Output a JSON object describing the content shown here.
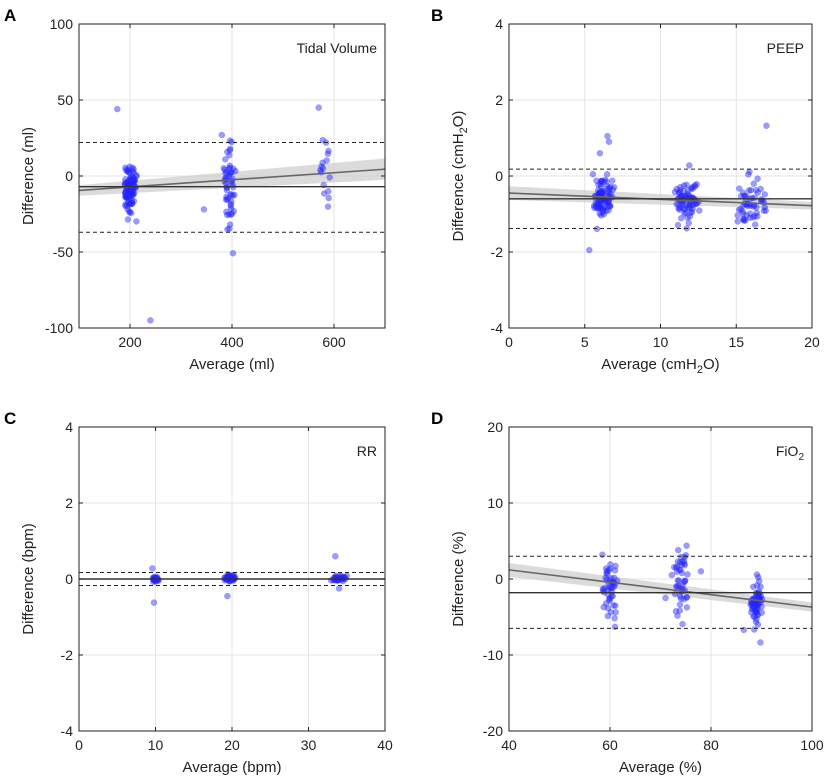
{
  "figure": {
    "colors": {
      "points": "#2424ff",
      "mean_line": "#333333",
      "regression_line": "#666666",
      "ci_band": "#cccccc",
      "loa_line": "#222222"
    }
  },
  "chart_data": [
    {
      "panel": "A",
      "type": "scatter",
      "title": "Tidal Volume",
      "title_main": "Tidal Volume",
      "title_sub": "",
      "xlabel": "Average (ml)",
      "ylabel": "Difference (ml)",
      "xlim": [
        100,
        700
      ],
      "ylim": [
        -100,
        100
      ],
      "xticks": [
        200,
        400,
        600
      ],
      "yticks": [
        -100,
        -50,
        0,
        50,
        100
      ],
      "mean_diff": -7,
      "loa_upper": 22,
      "loa_lower": -37,
      "regression": {
        "x": [
          100,
          700
        ],
        "y": [
          -9.5,
          4.5
        ],
        "ci_half_width": [
          3.5,
          7
        ]
      },
      "clusters": [
        {
          "center": 200,
          "spread": 13,
          "mean": -7,
          "sd": 8,
          "n": 110
        },
        {
          "center": 395,
          "spread": 14,
          "mean": -8,
          "sd": 14,
          "n": 55
        },
        {
          "center": 585,
          "spread": 14,
          "mean": 8,
          "sd": 11,
          "n": 16
        }
      ],
      "extra_points": [
        [
          175,
          44
        ],
        [
          240,
          -95
        ],
        [
          345,
          -22
        ],
        [
          380,
          27
        ],
        [
          570,
          45
        ]
      ]
    },
    {
      "panel": "B",
      "type": "scatter",
      "title": "PEEP",
      "title_main": "PEEP",
      "title_sub": "",
      "xlabel": "Average (cmH2O)",
      "xlabel_pre": "Average (cmH",
      "xlabel_sub": "2",
      "xlabel_post": "O)",
      "ylabel": "Difference (cmH2O)",
      "ylabel_pre": "Difference (cmH",
      "ylabel_sub": "2",
      "ylabel_post": "O)",
      "xlim": [
        0,
        20
      ],
      "ylim": [
        -4,
        4
      ],
      "xticks": [
        0,
        5,
        10,
        15,
        20
      ],
      "yticks": [
        -4,
        -2,
        0,
        2,
        4
      ],
      "mean_diff": -0.6,
      "loa_upper": 0.18,
      "loa_lower": -1.38,
      "regression": {
        "x": [
          0,
          20
        ],
        "y": [
          -0.45,
          -0.78
        ],
        "ci_half_width": [
          0.18,
          0.1
        ]
      },
      "clusters": [
        {
          "center": 6.2,
          "spread": 0.8,
          "mean": -0.55,
          "sd": 0.28,
          "n": 90
        },
        {
          "center": 11.8,
          "spread": 0.9,
          "mean": -0.65,
          "sd": 0.28,
          "n": 70
        },
        {
          "center": 16.0,
          "spread": 1.1,
          "mean": -0.7,
          "sd": 0.3,
          "n": 55
        }
      ],
      "extra_points": [
        [
          5.3,
          -1.95
        ],
        [
          6.0,
          0.6
        ],
        [
          6.5,
          1.05
        ],
        [
          6.6,
          0.9
        ],
        [
          11.9,
          0.28
        ],
        [
          17.0,
          1.32
        ]
      ]
    },
    {
      "panel": "C",
      "type": "scatter",
      "title": "RR",
      "title_main": "RR",
      "title_sub": "",
      "xlabel": "Average (bpm)",
      "ylabel": "Difference (bpm)",
      "xlim": [
        0,
        40
      ],
      "ylim": [
        -4,
        4
      ],
      "xticks": [
        0,
        10,
        20,
        30,
        40
      ],
      "yticks": [
        -4,
        -2,
        0,
        2,
        4
      ],
      "mean_diff": 0.0,
      "loa_upper": 0.17,
      "loa_lower": -0.17,
      "regression": null,
      "clusters": [
        {
          "center": 10.0,
          "spread": 0.5,
          "mean": 0.0,
          "sd": 0.04,
          "n": 30
        },
        {
          "center": 19.7,
          "spread": 0.8,
          "mean": 0.02,
          "sd": 0.04,
          "n": 60
        },
        {
          "center": 34.0,
          "spread": 1.2,
          "mean": 0.0,
          "sd": 0.05,
          "n": 30
        }
      ],
      "extra_points": [
        [
          9.6,
          0.28
        ],
        [
          9.8,
          -0.62
        ],
        [
          19.4,
          -0.45
        ],
        [
          33.5,
          0.6
        ],
        [
          34.0,
          -0.25
        ]
      ]
    },
    {
      "panel": "D",
      "type": "scatter",
      "title": "FiO2",
      "title_main": "FiO",
      "title_sub": "2",
      "xlabel": "Average (%)",
      "ylabel": "Difference (%)",
      "xlim": [
        40,
        100
      ],
      "ylim": [
        -20,
        20
      ],
      "xticks": [
        40,
        60,
        80,
        100
      ],
      "yticks": [
        -20,
        -10,
        0,
        10,
        20
      ],
      "mean_diff": -1.8,
      "loa_upper": 3.0,
      "loa_lower": -6.5,
      "regression": {
        "x": [
          40,
          100
        ],
        "y": [
          1.2,
          -3.7
        ],
        "ci_half_width": [
          0.9,
          0.6
        ]
      },
      "clusters": [
        {
          "center": 60.0,
          "spread": 1.5,
          "mean": -1.5,
          "sd": 2.0,
          "n": 45
        },
        {
          "center": 74.0,
          "spread": 2.0,
          "mean": -1.0,
          "sd": 2.6,
          "n": 45
        },
        {
          "center": 89.0,
          "spread": 1.3,
          "mean": -3.0,
          "sd": 1.6,
          "n": 60
        }
      ],
      "extra_points": [
        [
          58.5,
          3.2
        ],
        [
          61.0,
          -6.3
        ],
        [
          71.0,
          -2.5
        ],
        [
          73.5,
          3.8
        ],
        [
          78.0,
          1.0
        ],
        [
          86.5,
          -6.7
        ]
      ]
    }
  ]
}
